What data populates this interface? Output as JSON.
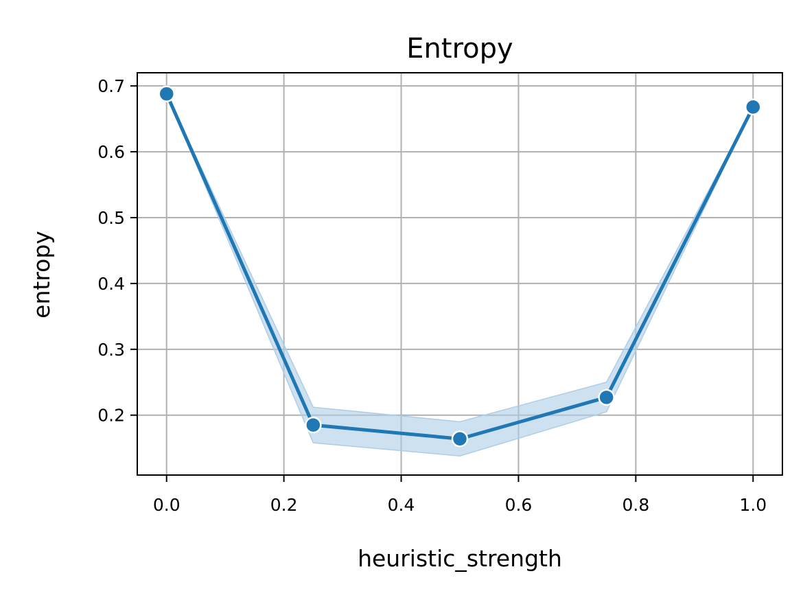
{
  "chart_data": {
    "type": "line",
    "title": "Entropy",
    "xlabel": "heuristic_strength",
    "ylabel": "entropy",
    "x": [
      0.0,
      0.25,
      0.5,
      0.75,
      1.0
    ],
    "series": [
      {
        "values": [
          0.688,
          0.185,
          0.164,
          0.227,
          0.668
        ],
        "ci_lower": [
          0.688,
          0.158,
          0.138,
          0.205,
          0.668
        ],
        "ci_upper": [
          0.688,
          0.212,
          0.19,
          0.25,
          0.668
        ],
        "color": "#1f77b4",
        "band_color": "#aecde6"
      }
    ],
    "xlim": [
      -0.05,
      1.05
    ],
    "ylim": [
      0.109,
      0.72
    ],
    "xticks": [
      0.0,
      0.2,
      0.4,
      0.6,
      0.8,
      1.0
    ],
    "xtick_labels": [
      "0.0",
      "0.2",
      "0.4",
      "0.6",
      "0.8",
      "1.0"
    ],
    "yticks": [
      0.2,
      0.3,
      0.4,
      0.5,
      0.6,
      0.7
    ],
    "ytick_labels": [
      "0.2",
      "0.3",
      "0.4",
      "0.5",
      "0.6",
      "0.7"
    ],
    "grid": true,
    "grid_color": "#b0b0b0"
  }
}
